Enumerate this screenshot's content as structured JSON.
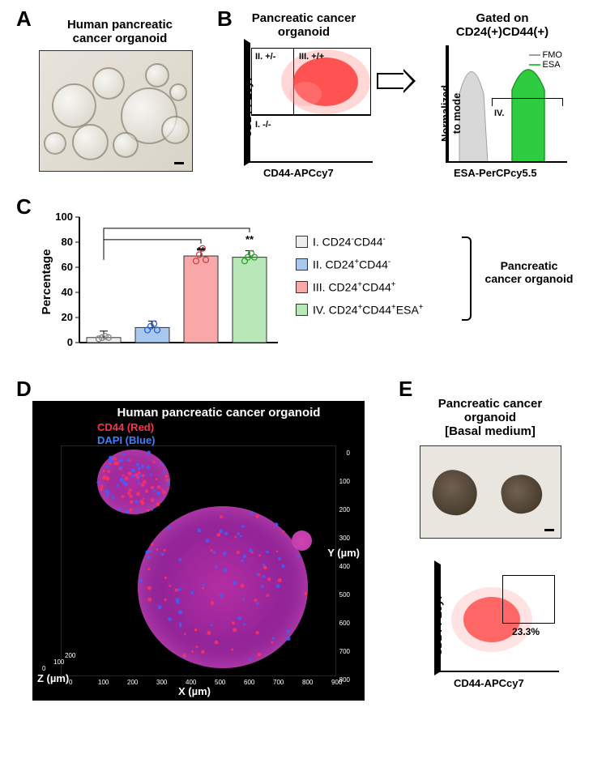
{
  "panels": {
    "A": {
      "label": "A",
      "title": "Human pancreatic\ncancer organoid",
      "bubbles": [
        {
          "x": 15,
          "y": 40,
          "d": 55
        },
        {
          "x": 65,
          "y": 20,
          "d": 40
        },
        {
          "x": 100,
          "y": 45,
          "d": 70
        },
        {
          "x": 40,
          "y": 90,
          "d": 45
        },
        {
          "x": 130,
          "y": 15,
          "d": 30
        },
        {
          "x": 150,
          "y": 80,
          "d": 35
        },
        {
          "x": 5,
          "y": 100,
          "d": 28
        },
        {
          "x": 90,
          "y": 100,
          "d": 32
        },
        {
          "x": 160,
          "y": 40,
          "d": 22
        }
      ]
    },
    "B": {
      "label": "B",
      "title_left": "Pancreatic cancer\norganoid",
      "title_right": "Gated on\nCD24(+)CD44(+)",
      "y_axis_left": "CD24-PEcy7",
      "x_axis_left": "CD44-APCcy7",
      "y_axis_right": "Normalized\nto mode",
      "x_axis_right": "ESA-PerCPcy5.5",
      "quad_I": "I. -/-",
      "quad_II": "II. +/-",
      "quad_III": "III. +/+",
      "quad_IV": "IV.",
      "legend_fmo": "FMO",
      "legend_esa": "ESA",
      "colors": {
        "scatter_fill": "#ff3030",
        "fmo": "#c0c0c0",
        "esa": "#2ecc40"
      }
    },
    "C": {
      "label": "C",
      "y_label": "Percentage",
      "y_max": 100,
      "y_ticks": [
        0,
        20,
        40,
        60,
        80,
        100
      ],
      "bars": [
        {
          "label": "I. CD24⁻CD44⁻",
          "value": 4,
          "color": "#eeeeee",
          "points": [
            3,
            4,
            5,
            4
          ]
        },
        {
          "label": "II. CD24⁺CD44⁻",
          "value": 12,
          "color": "#a8c8f0",
          "points": [
            10,
            13,
            15,
            10
          ]
        },
        {
          "label": "III. CD24⁺CD44⁺",
          "value": 69,
          "color": "#f8a8a8",
          "points": [
            65,
            70,
            75,
            66
          ]
        },
        {
          "label": "IV. CD24⁺CD44⁺ESA⁺",
          "value": 68,
          "color": "#b8e8b8",
          "points": [
            65,
            68,
            71,
            68
          ]
        }
      ],
      "sig_marker": "**",
      "group_label": "Pancreatic\ncancer organoid"
    },
    "D": {
      "label": "D",
      "title": "Human pancreatic  cancer organoid",
      "markers": [
        {
          "text": "CD44 (Red)",
          "color": "#ff3050"
        },
        {
          "text": "DAPI (Blue)",
          "color": "#4080ff"
        }
      ],
      "x_label": "X (µm)",
      "y_label": "Y (µm)",
      "z_label": "Z (µm)",
      "x_ticks": [
        "0",
        "100",
        "200",
        "300",
        "400",
        "500",
        "600",
        "700",
        "800",
        "900"
      ],
      "y_ticks": [
        "0",
        "100",
        "200",
        "300",
        "400",
        "500",
        "600",
        "700",
        "800"
      ],
      "z_ticks": [
        "0",
        "100",
        "200"
      ]
    },
    "E": {
      "label": "E",
      "title": "Pancreatic cancer\norganoid\n[Basal medium]",
      "y_axis": "CD24-PEcy7",
      "x_axis": "CD44-APCcy7",
      "gate_pct": "23.3%",
      "scatter_color": "#ff4040"
    }
  }
}
